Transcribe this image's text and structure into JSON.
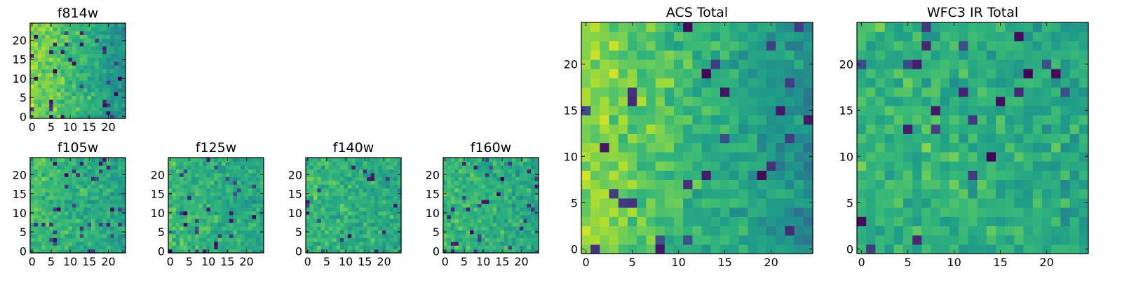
{
  "chart_data": [
    {
      "type": "heatmap",
      "title": "f814w",
      "grid_size": 25,
      "x_ticks": [
        0,
        5,
        10,
        15,
        20
      ],
      "y_ticks": [
        0,
        5,
        10,
        15,
        20
      ],
      "colormap": "viridis",
      "seed": 11,
      "gradient": 0.55
    },
    {
      "type": "heatmap",
      "title": "f105w",
      "grid_size": 25,
      "x_ticks": [
        0,
        5,
        10,
        15,
        20
      ],
      "y_ticks": [
        0,
        5,
        10,
        15,
        20
      ],
      "colormap": "viridis",
      "seed": 23,
      "gradient": 0.2
    },
    {
      "type": "heatmap",
      "title": "f125w",
      "grid_size": 25,
      "x_ticks": [
        0,
        5,
        10,
        15,
        20
      ],
      "y_ticks": [
        0,
        5,
        10,
        15,
        20
      ],
      "colormap": "viridis",
      "seed": 37,
      "gradient": 0.15
    },
    {
      "type": "heatmap",
      "title": "f140w",
      "grid_size": 25,
      "x_ticks": [
        0,
        5,
        10,
        15,
        20
      ],
      "y_ticks": [
        0,
        5,
        10,
        15,
        20
      ],
      "colormap": "viridis",
      "seed": 41,
      "gradient": 0.1
    },
    {
      "type": "heatmap",
      "title": "f160w",
      "grid_size": 25,
      "x_ticks": [
        0,
        5,
        10,
        15,
        20
      ],
      "y_ticks": [
        0,
        5,
        10,
        15,
        20
      ],
      "colormap": "viridis",
      "seed": 53,
      "gradient": 0.15
    },
    {
      "type": "heatmap",
      "title": "ACS Total",
      "grid_size": 25,
      "x_ticks": [
        0,
        5,
        10,
        15,
        20
      ],
      "y_ticks": [
        0,
        5,
        10,
        15,
        20
      ],
      "colormap": "viridis",
      "seed": 67,
      "gradient": 0.6
    },
    {
      "type": "heatmap",
      "title": "WFC3 IR Total",
      "grid_size": 25,
      "x_ticks": [
        0,
        5,
        10,
        15,
        20
      ],
      "y_ticks": [
        0,
        5,
        10,
        15,
        20
      ],
      "colormap": "viridis",
      "seed": 79,
      "gradient": 0.1
    }
  ]
}
